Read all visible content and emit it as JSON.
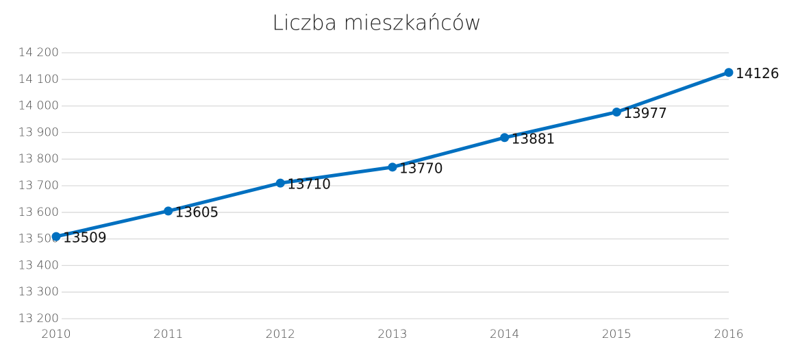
{
  "chart_data": {
    "type": "line",
    "title": "Liczba mieszkańców",
    "x": [
      2010,
      2011,
      2012,
      2013,
      2014,
      2015,
      2016
    ],
    "xlim": [
      2010,
      2016
    ],
    "xticks": [
      2010,
      2011,
      2012,
      2013,
      2014,
      2015,
      2016
    ],
    "series": [
      {
        "name": "Liczba mieszkańców",
        "color": "#0070c0",
        "values": [
          13509,
          13605,
          13710,
          13770,
          13881,
          13977,
          14126
        ]
      }
    ],
    "ylim": [
      13200,
      14200
    ],
    "yticks": [
      {
        "value": 13200,
        "label": "13 200"
      },
      {
        "value": 13300,
        "label": "13 300"
      },
      {
        "value": 13400,
        "label": "13 400"
      },
      {
        "value": 13500,
        "label": "13 500"
      },
      {
        "value": 13600,
        "label": "13 600"
      },
      {
        "value": 13700,
        "label": "13 700"
      },
      {
        "value": 13800,
        "label": "13 800"
      },
      {
        "value": 13900,
        "label": "13 900"
      },
      {
        "value": 14000,
        "label": "14 000"
      },
      {
        "value": 14100,
        "label": "14 100"
      },
      {
        "value": 14200,
        "label": "14 200"
      }
    ],
    "grid": true
  }
}
